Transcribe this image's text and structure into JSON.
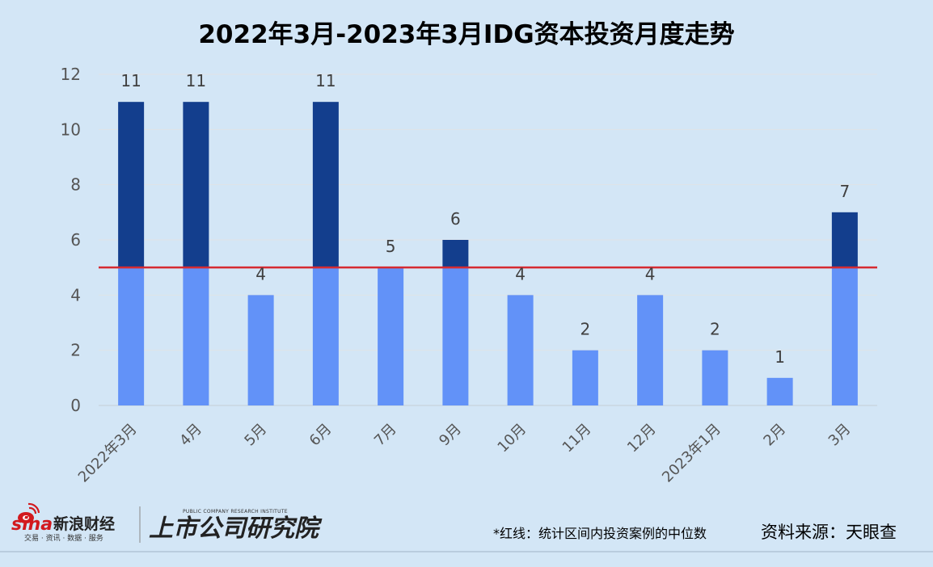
{
  "chart_data": {
    "type": "bar",
    "title": "2022年3月-2023年3月IDG资本投资月度走势",
    "categories": [
      "2022年3月",
      "4月",
      "5月",
      "6月",
      "7月",
      "9月",
      "10月",
      "11月",
      "12月",
      "2023年1月",
      "2月",
      "3月"
    ],
    "values": [
      11,
      11,
      4,
      11,
      5,
      6,
      4,
      2,
      4,
      2,
      1,
      7
    ],
    "ylim": [
      0,
      12
    ],
    "yticks": [
      0,
      2,
      4,
      6,
      8,
      10,
      12
    ],
    "median_line": 5,
    "grid": true,
    "colors": {
      "below_median": "#6292f8",
      "above_median": "#133e8d",
      "median_line": "#d62a31",
      "background": "#d3e6f6"
    }
  },
  "footer": {
    "note": "*红线：统计区间内投资案例的中位数",
    "source": "资料来源：天眼查"
  },
  "logos": {
    "sina": {
      "word": "sina",
      "name": "新浪财经",
      "tagline": "交易 · 资讯 · 数据 · 服务"
    },
    "institute": {
      "name": "上市公司研究院",
      "english": "PUBLIC COMPANY RESEARCH INSTITUTE"
    }
  }
}
